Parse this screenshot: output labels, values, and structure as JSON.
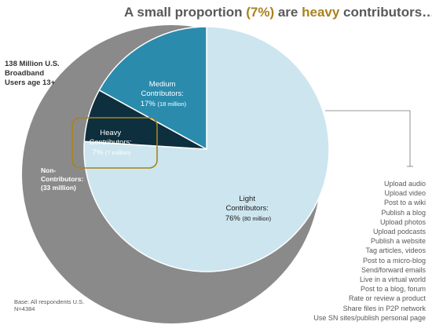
{
  "title": {
    "prefix": "A small proportion ",
    "highlight_pct": "(7%)",
    "middle": " are ",
    "highlight_word": "heavy",
    "suffix": " contributors…"
  },
  "population_label": [
    "138 Million U.S.",
    "Broadband",
    "Users age 13+"
  ],
  "base_note": [
    "Base: All respondents U.S.",
    "N=4384"
  ],
  "chart_data": {
    "type": "pie",
    "outer": {
      "label": [
        "Non-",
        "Contributors:"
      ],
      "value_label": "(33 million)",
      "millions": 33
    },
    "slices": [
      {
        "name": "Light Contributors:",
        "pct_label": "76%",
        "count_label": "(80 million)",
        "percent": 76,
        "millions": 80,
        "color": "#cde5ee"
      },
      {
        "name": "Heavy Contributors:",
        "pct_label": "7%",
        "count_label": "(7 million)",
        "percent": 7,
        "millions": 7,
        "color": "#0e2f3d"
      },
      {
        "name": "Medium Contributors:",
        "pct_label": "17%",
        "count_label": "(18 million)",
        "percent": 17,
        "millions": 18,
        "color": "#2a8bad"
      }
    ],
    "colors": {
      "outer_ring": "#8a8a8a",
      "highlight_box": "#a8821c",
      "title_highlight": "#a8821c"
    }
  },
  "activities": [
    "Upload audio",
    "Upload video",
    "Post to a wiki",
    "Publish a blog",
    "Upload photos",
    "Upload podcasts",
    "Publish a website",
    "Tag articles, videos",
    "Post to a micro-blog",
    "Send/forward emails",
    "Live in a virtual world",
    "Post to a blog, forum",
    "Rate or review a product",
    "Share files in P2P network",
    "Use SN sites/publish personal page"
  ]
}
